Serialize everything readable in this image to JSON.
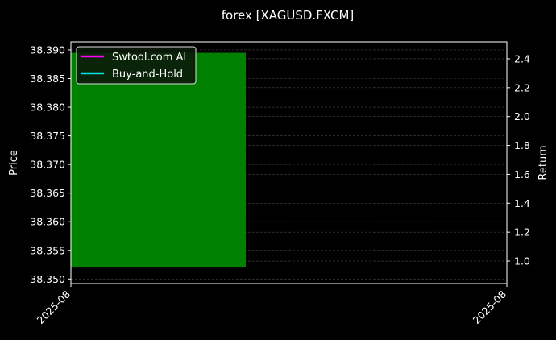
{
  "chart_data": {
    "type": "bar",
    "title": "forex [XAGUSD.FXCM]",
    "ylabel": "Price",
    "y2label": "Return",
    "ylim": [
      38.3492,
      38.3914
    ],
    "y2lim": [
      0.844,
      2.517
    ],
    "yticks": [
      "38.350",
      "38.355",
      "38.360",
      "38.365",
      "38.370",
      "38.375",
      "38.380",
      "38.385",
      "38.390"
    ],
    "y2ticks": [
      "1.0",
      "1.2",
      "1.4",
      "1.6",
      "1.8",
      "2.0",
      "2.2",
      "2.4"
    ],
    "xticks": [
      "2025-08",
      "2025-08"
    ],
    "grid": true,
    "bars": [
      {
        "low": 38.352,
        "high": 38.3895,
        "color": "#008000"
      }
    ],
    "legend": {
      "placement": "top-left",
      "entries": [
        {
          "name": "Swtool.com AI",
          "color": "#ff00ff"
        },
        {
          "name": "Buy-and-Hold",
          "color": "#00e5e5"
        }
      ]
    },
    "background": "#000000"
  }
}
